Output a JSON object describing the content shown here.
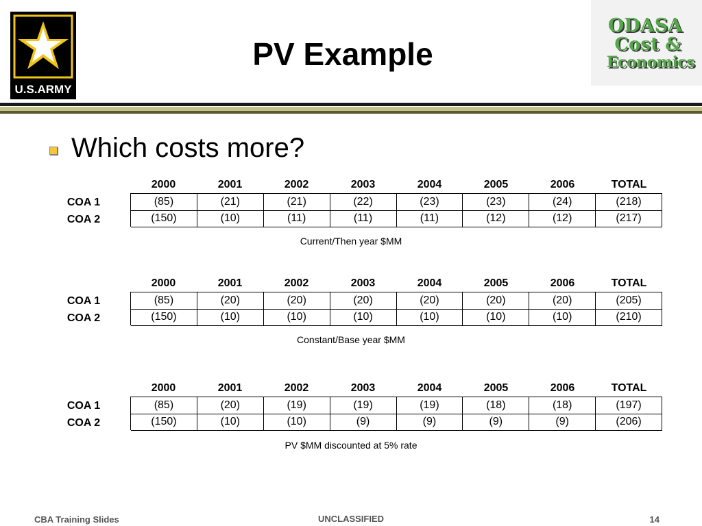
{
  "army_logo": {
    "text": "U.S.ARMY",
    "icon": "army-star-icon"
  },
  "odasa_logo": {
    "line1": "ODASA",
    "line2": "Cost &",
    "line3": "Economics",
    "color": "#55a84a"
  },
  "title": "PV Example",
  "bullet": "Which costs more?",
  "tables": [
    {
      "headers": [
        "2000",
        "2001",
        "2002",
        "2003",
        "2004",
        "2005",
        "2006",
        "TOTAL"
      ],
      "rows": [
        {
          "label": "COA 1",
          "values": [
            "(85)",
            "(21)",
            "(21)",
            "(22)",
            "(23)",
            "(23)",
            "(24)",
            "(218)"
          ]
        },
        {
          "label": "COA 2",
          "values": [
            "(150)",
            "(10)",
            "(11)",
            "(11)",
            "(11)",
            "(12)",
            "(12)",
            "(217)"
          ]
        }
      ],
      "caption": "Current/Then year $MM"
    },
    {
      "headers": [
        "2000",
        "2001",
        "2002",
        "2003",
        "2004",
        "2005",
        "2006",
        "TOTAL"
      ],
      "rows": [
        {
          "label": "COA 1",
          "values": [
            "(85)",
            "(20)",
            "(20)",
            "(20)",
            "(20)",
            "(20)",
            "(20)",
            "(205)"
          ]
        },
        {
          "label": "COA 2",
          "values": [
            "(150)",
            "(10)",
            "(10)",
            "(10)",
            "(10)",
            "(10)",
            "(10)",
            "(210)"
          ]
        }
      ],
      "caption": "Constant/Base year $MM"
    },
    {
      "headers": [
        "2000",
        "2001",
        "2002",
        "2003",
        "2004",
        "2005",
        "2006",
        "TOTAL"
      ],
      "rows": [
        {
          "label": "COA 1",
          "values": [
            "(85)",
            "(20)",
            "(19)",
            "(19)",
            "(19)",
            "(18)",
            "(18)",
            "(197)"
          ]
        },
        {
          "label": "COA 2",
          "values": [
            "(150)",
            "(10)",
            "(10)",
            "(9)",
            "(9)",
            "(9)",
            "(9)",
            "(206)"
          ]
        }
      ],
      "caption": "PV $MM discounted at 5% rate"
    }
  ],
  "footer": {
    "left": "CBA Training Slides",
    "center": "UNCLASSIFIED",
    "page": "14"
  }
}
